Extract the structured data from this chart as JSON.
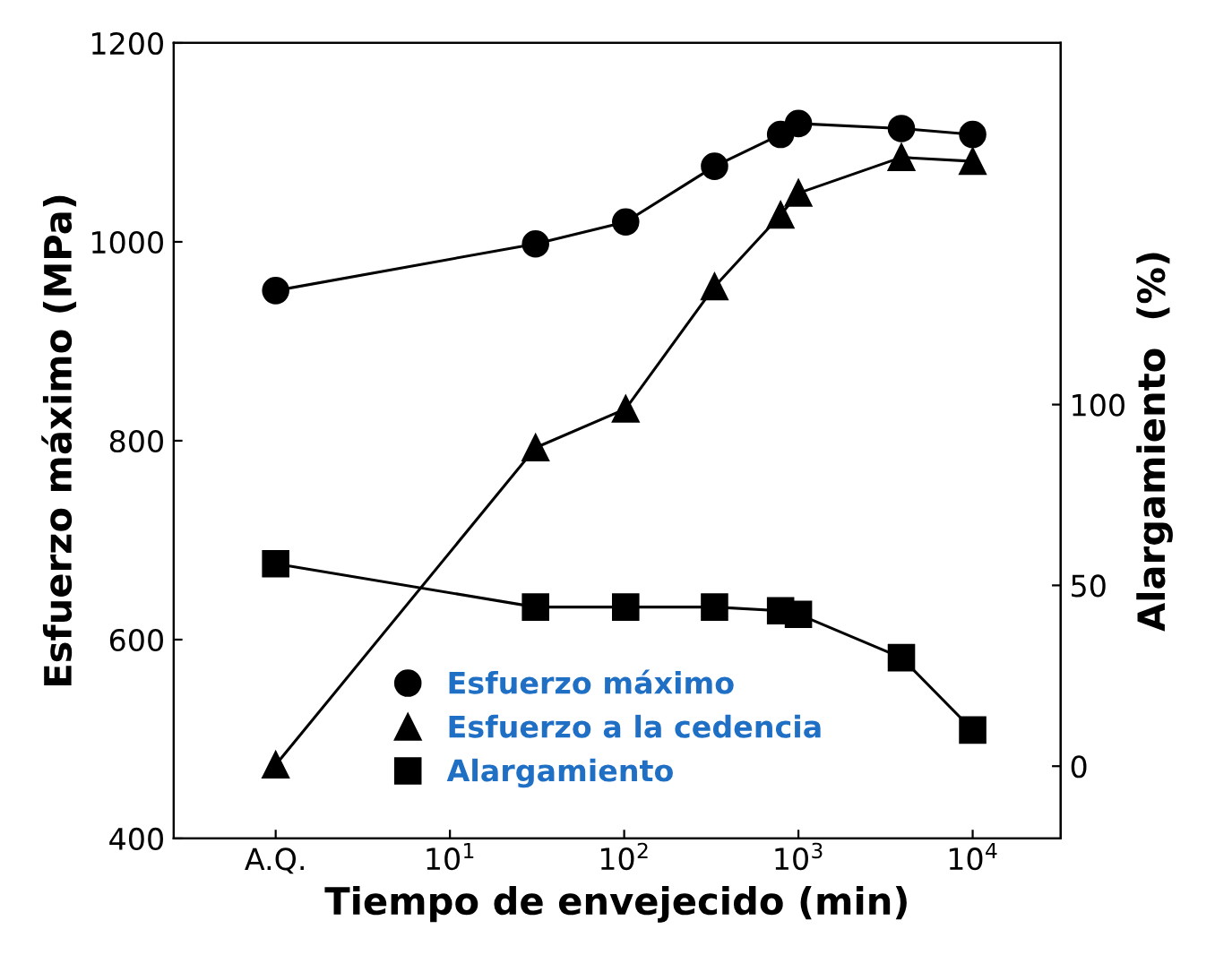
{
  "chart_data": {
    "type": "line",
    "xlabel": "Tiempo de envejecido (min)",
    "ylabel": "Esfuerzo máximo (MPa)",
    "y2label": "Alargamiento  (%)",
    "log": "x",
    "xlim": [
      0.26,
      32000
    ],
    "xticks": [
      {
        "value": 1,
        "label": "A.Q."
      },
      {
        "value": 10,
        "label": "10$^{1}$"
      },
      {
        "value": 100,
        "label": "10$^{2}$"
      },
      {
        "value": 1000,
        "label": "10$^{3}$"
      },
      {
        "value": 10000,
        "label": "10$^{4}$"
      }
    ],
    "ylim": [
      400,
      1200
    ],
    "yticks": [
      400,
      600,
      800,
      1000,
      1200
    ],
    "y2lim": [
      -20,
      200
    ],
    "y2ticks": [
      0,
      50,
      100
    ],
    "grid": false,
    "legend": "bottom left",
    "line_style": "solid",
    "series": [
      {
        "name": "Esfuerzo máximo",
        "color": "#000000",
        "marker": "circle",
        "x": [
          1,
          31,
          102,
          330,
          790,
          1000,
          3900,
          10000
        ],
        "values": [
          951,
          998,
          1020,
          1076,
          1108,
          1119,
          1114,
          1108
        ]
      },
      {
        "name": "Esfuerzo a la cedencia",
        "color": "#000000",
        "marker": "triangle",
        "x": [
          1,
          31,
          102,
          330,
          790,
          1000,
          3900,
          10000
        ],
        "values": [
          474,
          793,
          832,
          955,
          1027,
          1049,
          1085,
          1081
        ]
      },
      {
        "name": "Alargamiento",
        "color": "#000000",
        "marker": "square",
        "axis": "y2",
        "x": [
          1,
          31,
          102,
          330,
          790,
          1000,
          3900,
          10000
        ],
        "values": [
          56,
          44,
          44,
          44,
          43,
          42,
          30,
          10
        ]
      }
    ]
  }
}
